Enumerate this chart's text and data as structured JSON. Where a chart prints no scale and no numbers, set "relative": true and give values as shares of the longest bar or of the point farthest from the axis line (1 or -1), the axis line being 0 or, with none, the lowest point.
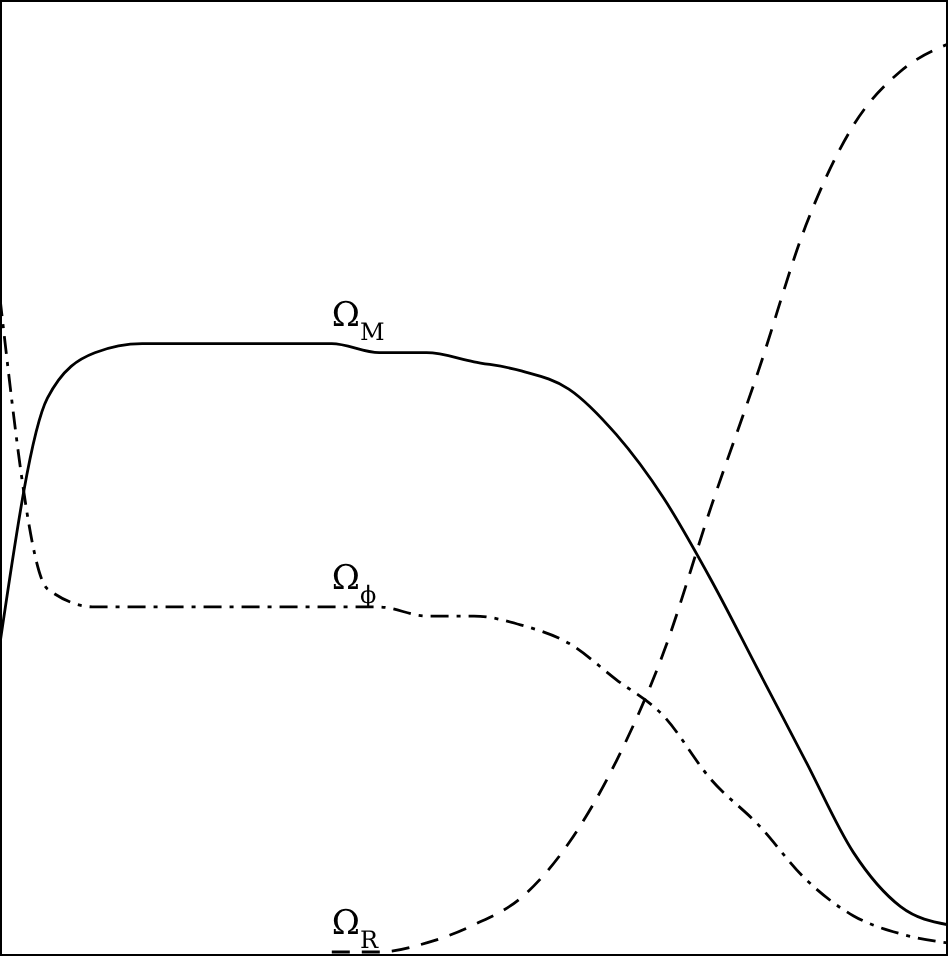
{
  "chart_data": {
    "type": "line",
    "relative": true,
    "categories": [
      null,
      null,
      null,
      null,
      null,
      null,
      null,
      null,
      null,
      null,
      null,
      null,
      null,
      null,
      null,
      null,
      null,
      null,
      null,
      null,
      null
    ],
    "series": [
      {
        "name": "Ω$_{M}$",
        "color": "#000000",
        "line_style": "solid",
        "values": [
          0.34,
          0.61,
          0.66,
          0.67,
          0.67,
          0.67,
          0.67,
          0.67,
          0.66,
          0.66,
          0.65,
          0.64,
          0.62,
          0.57,
          0.5,
          0.41,
          0.31,
          0.21,
          0.11,
          0.05,
          0.03
        ]
      },
      {
        "name": "Ω$_{ϕ}$",
        "color": "#000000",
        "line_style": "dashdot",
        "values": [
          0.72,
          0.4,
          0.38,
          0.38,
          0.38,
          0.38,
          0.38,
          0.38,
          0.38,
          0.37,
          0.37,
          0.36,
          0.34,
          0.3,
          0.26,
          0.19,
          0.14,
          0.08,
          0.04,
          0.02,
          0.01
        ]
      },
      {
        "name": "Ω$_{R}$",
        "color": "#000000",
        "line_style": "dashed",
        "values": [
          null,
          null,
          null,
          null,
          null,
          null,
          null,
          0,
          0,
          0.01,
          0.03,
          0.06,
          0.12,
          0.21,
          0.33,
          0.49,
          0.64,
          0.8,
          0.91,
          0.97,
          1.0
        ]
      }
    ]
  }
}
